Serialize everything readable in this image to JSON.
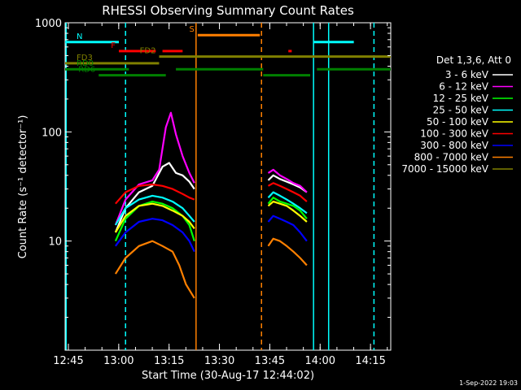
{
  "chart_data": {
    "type": "line",
    "title": "RHESSI Observing Summary Count Rates",
    "xlabel": "Start Time (30-Aug-17 12:44:02)",
    "ylabel": "Count Rate (s⁻¹ detector⁻¹)",
    "yscale": "log",
    "ylim": [
      1,
      1000
    ],
    "xlim_minutes": [
      0,
      97
    ],
    "x_ticks": [
      "12:45",
      "13:00",
      "13:15",
      "13:30",
      "13:45",
      "14:00",
      "14:15"
    ],
    "y_ticks": [
      "10",
      "100",
      "1000"
    ],
    "footer": "1-Sep-2022 19:03",
    "legend": {
      "title": "Det 1,3,6, Att 0",
      "position": "right",
      "entries": [
        {
          "label": "3 - 6 keV",
          "color": "#ffffff"
        },
        {
          "label": "6 - 12 keV",
          "color": "#ff00ff"
        },
        {
          "label": "12 - 25 keV",
          "color": "#00ff00"
        },
        {
          "label": "25 - 50 keV",
          "color": "#00ffff"
        },
        {
          "label": "50 - 100 keV",
          "color": "#ffff00"
        },
        {
          "label": "100 - 300 keV",
          "color": "#ff0000"
        },
        {
          "label": "300 - 800 keV",
          "color": "#0000ff"
        },
        {
          "label": "800 - 7000 keV",
          "color": "#ff8000"
        },
        {
          "label": "7000 - 15000 keV",
          "color": "#808000"
        }
      ]
    },
    "series": [
      {
        "name": "3 - 6 keV",
        "color": "#ffffff",
        "segments": [
          {
            "x": [
              15,
              18,
              22,
              26,
              29,
              31,
              33,
              35,
              37,
              38.5
            ],
            "y": [
              12,
              20,
              28,
              32,
              48,
              52,
              42,
              40,
              35,
              30
            ]
          },
          {
            "x": [
              60.5,
              62,
              64,
              66,
              68,
              70,
              72
            ],
            "y": [
              36,
              40,
              37,
              35,
              33,
              31,
              28
            ]
          }
        ]
      },
      {
        "name": "6 - 12 keV",
        "color": "#ff00ff",
        "segments": [
          {
            "x": [
              15,
              18,
              22,
              26,
              28,
              30,
              31.5,
              33,
              35,
              37,
              38.5
            ],
            "y": [
              14,
              24,
              33,
              36,
              45,
              110,
              150,
              95,
              60,
              42,
              34
            ]
          },
          {
            "x": [
              60.5,
              62,
              64,
              66,
              68,
              70,
              72
            ],
            "y": [
              42,
              45,
              40,
              37,
              34,
              32,
              28
            ]
          }
        ]
      },
      {
        "name": "12 - 25 keV",
        "color": "#00ff00",
        "segments": [
          {
            "x": [
              15,
              18,
              22,
              26,
              29,
              32,
              35,
              37,
              38.5
            ],
            "y": [
              10,
              16,
              21,
              23,
              22,
              20,
              17,
              14,
              10
            ]
          },
          {
            "x": [
              60.5,
              62,
              64,
              66,
              68,
              70,
              72
            ],
            "y": [
              22,
              25,
              23,
              22,
              21,
              19,
              16
            ]
          }
        ]
      },
      {
        "name": "25 - 50 keV",
        "color": "#00ffff",
        "segments": [
          {
            "x": [
              15,
              18,
              22,
              26,
              29,
              32,
              35,
              37,
              38.5
            ],
            "y": [
              14,
              20,
              24,
              26,
              25,
              23,
              20,
              17,
              15
            ]
          },
          {
            "x": [
              60.5,
              62,
              64,
              66,
              68,
              70,
              72
            ],
            "y": [
              25,
              28,
              26,
              24,
              22,
              20,
              18
            ]
          }
        ]
      },
      {
        "name": "50 - 100 keV",
        "color": "#ffff00",
        "segments": [
          {
            "x": [
              15,
              18,
              22,
              26,
              29,
              32,
              35,
              37,
              38.5
            ],
            "y": [
              12,
              17,
              21,
              22,
              21,
              19,
              17,
              15,
              13
            ]
          },
          {
            "x": [
              60.5,
              62,
              64,
              66,
              68,
              70,
              72
            ],
            "y": [
              21,
              23,
              22,
              21,
              19,
              17,
              15
            ]
          }
        ]
      },
      {
        "name": "100 - 300 keV",
        "color": "#ff0000",
        "segments": [
          {
            "x": [
              15,
              18,
              22,
              26,
              29,
              32,
              35,
              37,
              38.5
            ],
            "y": [
              22,
              28,
              32,
              33,
              32,
              30,
              27,
              25,
              24
            ]
          },
          {
            "x": [
              60.5,
              62,
              64,
              66,
              68,
              70,
              72
            ],
            "y": [
              32,
              34,
              32,
              30,
              28,
              26,
              23
            ]
          }
        ]
      },
      {
        "name": "300 - 800 keV",
        "color": "#0000ff",
        "segments": [
          {
            "x": [
              15,
              18,
              22,
              26,
              29,
              32,
              35,
              37,
              38.5
            ],
            "y": [
              9,
              12,
              15,
              16,
              15.5,
              14,
              12,
              10,
              8
            ]
          },
          {
            "x": [
              60.5,
              62,
              64,
              66,
              68,
              70,
              72
            ],
            "y": [
              15,
              17,
              16,
              15,
              14,
              12,
              10
            ]
          }
        ]
      },
      {
        "name": "800 - 7000 keV",
        "color": "#ff8000",
        "segments": [
          {
            "x": [
              15,
              18,
              22,
              26,
              29,
              32,
              34,
              36,
              38.5
            ],
            "y": [
              5,
              7,
              9,
              10,
              9,
              8,
              6,
              4,
              3
            ]
          },
          {
            "x": [
              60.5,
              62,
              64,
              66,
              68,
              70,
              72
            ],
            "y": [
              9,
              10.5,
              10,
              9,
              8,
              7,
              6
            ]
          }
        ]
      },
      {
        "name": "7000 - 15000 keV",
        "color": "#808000",
        "segments": []
      }
    ],
    "flag_bars": [
      {
        "label": "N",
        "color": "#00ffff",
        "y": 665,
        "spans": [
          [
            0,
            16
          ],
          [
            74,
            86
          ]
        ]
      },
      {
        "label": "S",
        "color": "#ff8000",
        "y": 770,
        "spans": [
          [
            39.5,
            58
          ]
        ]
      },
      {
        "label": "F",
        "color": "#ff0000",
        "y": 550,
        "spans": [
          [
            16,
            27
          ],
          [
            29,
            35
          ],
          [
            66.5,
            67.5
          ]
        ]
      },
      {
        "label": "FD2",
        "color": "#808000",
        "y": 490,
        "spans": [
          [
            28,
            97
          ]
        ]
      },
      {
        "label": "FD3",
        "color": "#808000",
        "y": 425,
        "spans": [
          [
            0,
            28
          ]
        ]
      },
      {
        "label": "RD0",
        "color": "#008000",
        "y": 375,
        "spans": [
          [
            0,
            19
          ],
          [
            33,
            59
          ],
          [
            75,
            97
          ]
        ]
      },
      {
        "label": "RD6",
        "color": "#008000",
        "y": 330,
        "spans": [
          [
            10,
            30
          ],
          [
            59,
            73
          ]
        ]
      }
    ],
    "vertical_lines": [
      {
        "x": 0.3,
        "color": "#00ffff",
        "style": "solid"
      },
      {
        "x": 18,
        "color": "#00ffff",
        "style": "dashed"
      },
      {
        "x": 39,
        "color": "#ff8000",
        "style": "solid"
      },
      {
        "x": 58.5,
        "color": "#ff8000",
        "style": "dashed"
      },
      {
        "x": 74,
        "color": "#00ffff",
        "style": "solid"
      },
      {
        "x": 78.5,
        "color": "#00ffff",
        "style": "solid"
      },
      {
        "x": 92,
        "color": "#00ffff",
        "style": "dashed"
      }
    ]
  }
}
